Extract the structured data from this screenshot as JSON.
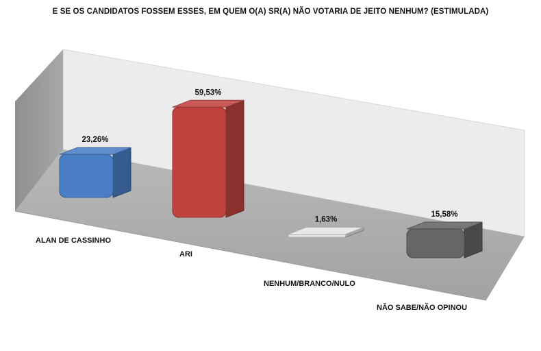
{
  "chart_data": {
    "type": "bar",
    "title": "E SE OS CANDIDATOS FOSSEM ESSES, EM QUEM O(A) SR(A) NÃO VOTARIA DE JEITO NENHUM? (ESTIMULADA)",
    "categories": [
      "ALAN DE CASSINHO",
      "ARI",
      "NENHUM/BRANCO/NULO",
      "NÃO SABE/NÃO OPINOU"
    ],
    "values": [
      23.26,
      59.53,
      1.63,
      15.58
    ],
    "data_labels": [
      "23,26%",
      "59,53%",
      "1,63%",
      "15,58%"
    ],
    "colors": [
      "#4a7ec6",
      "#c0423f",
      "#e6e6e6",
      "#666666"
    ],
    "grid": false,
    "legend": "none",
    "style": "3d-perspective"
  }
}
